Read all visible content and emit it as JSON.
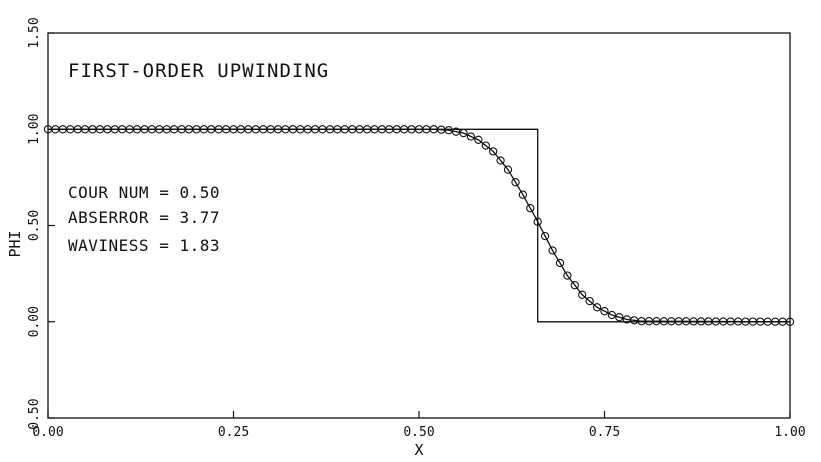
{
  "chart_data": {
    "type": "line",
    "title": "FIRST-ORDER UPWINDING",
    "xlabel": "X",
    "ylabel": "PHI",
    "xlim": [
      0.0,
      1.0
    ],
    "ylim": [
      -0.5,
      1.5
    ],
    "x_ticks": [
      "0.00",
      "0.25",
      "0.50",
      "0.75",
      "1.00"
    ],
    "y_ticks": [
      "-0.50",
      "0.00",
      "0.50",
      "1.00",
      "1.50"
    ],
    "annotations": [
      "COUR NUM = 0.50",
      "ABSERROR = 3.77",
      "WAVINESS = 1.83"
    ],
    "grid": false,
    "series": [
      {
        "style": "step-line",
        "x": [
          0.0,
          0.66,
          0.66,
          1.0
        ],
        "y": [
          1.0,
          1.0,
          0.0,
          0.0
        ]
      },
      {
        "style": "line-with-circles",
        "x": [
          0.0,
          0.52,
          0.54,
          0.56,
          0.58,
          0.6,
          0.62,
          0.64,
          0.66,
          0.68,
          0.7,
          0.72,
          0.74,
          0.76,
          0.78,
          0.8,
          1.0
        ],
        "y": [
          1.0,
          1.0,
          0.995,
          0.98,
          0.945,
          0.885,
          0.79,
          0.66,
          0.52,
          0.37,
          0.24,
          0.14,
          0.075,
          0.035,
          0.012,
          0.003,
          0.0
        ]
      }
    ]
  }
}
